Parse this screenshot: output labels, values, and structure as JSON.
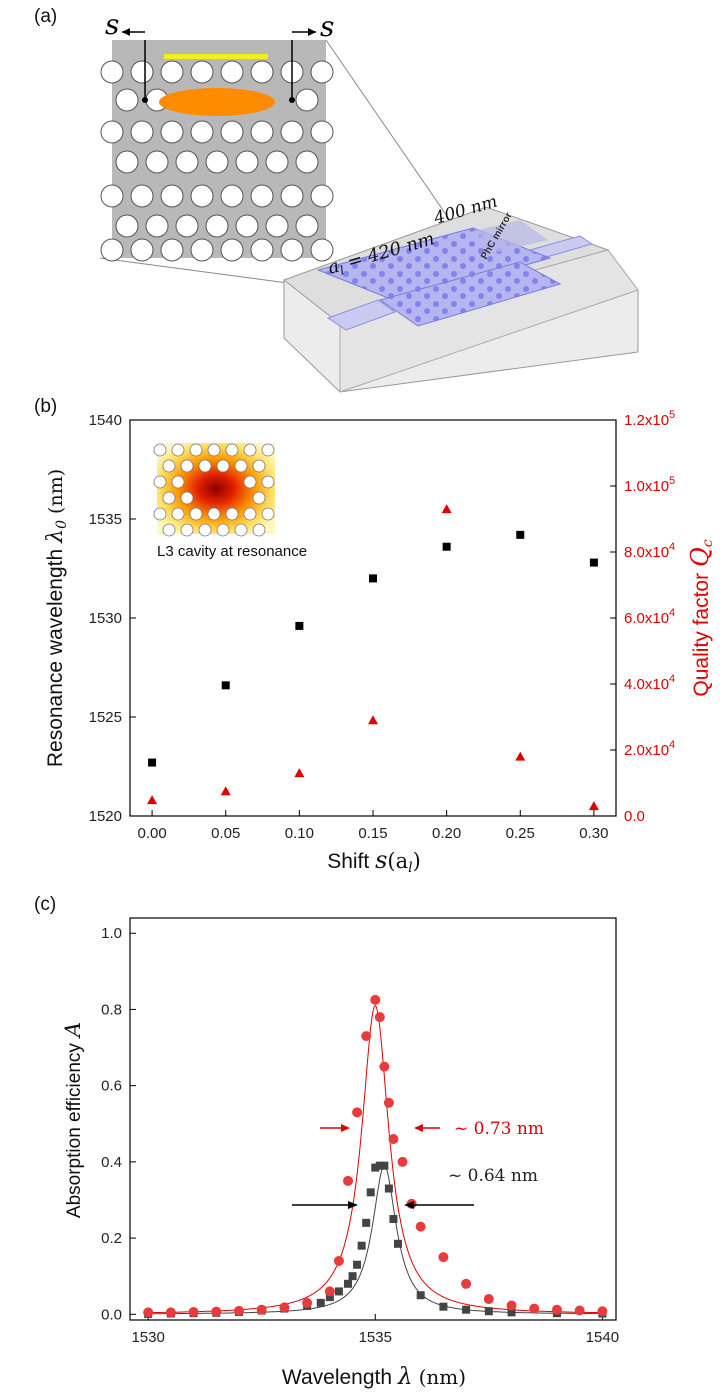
{
  "panel_a": {
    "label": "(a)",
    "shift_label_left": "s",
    "shift_label_right": "s",
    "lattice_label": "a_l = 420 nm",
    "lattice_label_a": "a",
    "lattice_label_sub": "l",
    "lattice_label_rest": " = 420 nm",
    "thickness_label": "400 nm",
    "mirror_label": "PhC mirror"
  },
  "chart_data": [
    {
      "type": "scatter",
      "panel": "(b)",
      "xlabel": "Shift s(a_l)",
      "xlabel_text": "Shift ",
      "xlabel_math": "s",
      "xlabel_math_paren": "(a",
      "xlabel_math_sub": "l",
      "xlabel_math_close": ")",
      "ylabel_left": "Resonance wavelength λ0 (nm)",
      "ylabel_left_text": "Resonance wavelength",
      "ylabel_left_math": "λ",
      "ylabel_left_sub": "0",
      "ylabel_left_unit": "(nm)",
      "ylabel_right": "Quality factor Q_c",
      "ylabel_right_text": "Quality factor",
      "ylabel_right_math": "Q",
      "ylabel_right_sub": "c",
      "xlim": [
        -0.015,
        0.315
      ],
      "ylim_left": [
        1520,
        1540
      ],
      "ylim_right": [
        0,
        120000
      ],
      "xticks": [
        "0.00",
        "0.05",
        "0.10",
        "0.15",
        "0.20",
        "0.25",
        "0.30"
      ],
      "yticks_left": [
        "1520",
        "1525",
        "1530",
        "1535",
        "1540"
      ],
      "yticks_right": [
        {
          "m": "0.0",
          "e": ""
        },
        {
          "m": "2.0x10",
          "e": "4"
        },
        {
          "m": "4.0x10",
          "e": "4"
        },
        {
          "m": "6.0x10",
          "e": "4"
        },
        {
          "m": "8.0x10",
          "e": "4"
        },
        {
          "m": "1.0x10",
          "e": "5"
        },
        {
          "m": "1.2x10",
          "e": "5"
        }
      ],
      "inset_caption": "L3 cavity at resonance",
      "series": [
        {
          "name": "Resonance wavelength",
          "axis": "left",
          "marker": "square",
          "color": "#000000",
          "x": [
            0.0,
            0.05,
            0.1,
            0.15,
            0.2,
            0.25,
            0.3
          ],
          "values": [
            1522.7,
            1526.6,
            1529.6,
            1532.0,
            1533.6,
            1534.2,
            1532.8
          ]
        },
        {
          "name": "Quality factor",
          "axis": "right",
          "marker": "triangle",
          "color": "#e00000",
          "x": [
            0.0,
            0.05,
            0.1,
            0.15,
            0.2,
            0.25,
            0.3
          ],
          "values": [
            4800,
            7500,
            13000,
            29000,
            93000,
            18000,
            3000
          ]
        }
      ]
    },
    {
      "type": "scatter",
      "panel": "(c)",
      "xlabel": "Wavelength λ (nm)",
      "xlabel_text": "Wavelength",
      "xlabel_math": "λ",
      "xlabel_unit": "(nm)",
      "ylabel": "Absorption efficiency A",
      "ylabel_text": "Absorption efficiency",
      "ylabel_math": "A",
      "xlim": [
        1530,
        1540
      ],
      "ylim": [
        0,
        1.0
      ],
      "xticks": [
        "1530",
        "1535",
        "1540"
      ],
      "yticks": [
        "0.0",
        "0.2",
        "0.4",
        "0.6",
        "0.8",
        "1.0"
      ],
      "annotations": [
        {
          "text": "~ 0.73 nm",
          "color": "#e00000"
        },
        {
          "text": "~ 0.64 nm",
          "color": "#222222"
        }
      ],
      "series": [
        {
          "name": "black squares",
          "marker": "square",
          "color": "#444444",
          "x": [
            1530,
            1530.5,
            1531,
            1531.5,
            1532,
            1532.5,
            1533,
            1533.5,
            1533.8,
            1534,
            1534.2,
            1534.4,
            1534.5,
            1534.6,
            1534.7,
            1534.8,
            1534.9,
            1535,
            1535.1,
            1535.2,
            1535.3,
            1535.4,
            1535.5,
            1536,
            1536.5,
            1537,
            1537.5,
            1538,
            1539,
            1540
          ],
          "values": [
            0.001,
            0.002,
            0.003,
            0.004,
            0.006,
            0.01,
            0.015,
            0.022,
            0.03,
            0.045,
            0.06,
            0.08,
            0.1,
            0.13,
            0.18,
            0.24,
            0.32,
            0.385,
            0.39,
            0.39,
            0.33,
            0.25,
            0.185,
            0.05,
            0.02,
            0.012,
            0.008,
            0.005,
            0.003,
            0.002
          ]
        },
        {
          "name": "red circles",
          "marker": "circle",
          "color": "#e83c3c",
          "x": [
            1530,
            1530.5,
            1531,
            1531.5,
            1532,
            1532.5,
            1533,
            1533.5,
            1534,
            1534.2,
            1534.4,
            1534.6,
            1534.8,
            1535,
            1535.1,
            1535.2,
            1535.3,
            1535.4,
            1535.6,
            1535.8,
            1536,
            1536.5,
            1537,
            1537.5,
            1538,
            1538.5,
            1539,
            1539.5,
            1540
          ],
          "values": [
            0.005,
            0.005,
            0.006,
            0.007,
            0.009,
            0.012,
            0.018,
            0.03,
            0.06,
            0.14,
            0.35,
            0.53,
            0.73,
            0.825,
            0.78,
            0.65,
            0.555,
            0.46,
            0.4,
            0.29,
            0.23,
            0.15,
            0.08,
            0.04,
            0.023,
            0.015,
            0.012,
            0.01,
            0.008
          ]
        }
      ],
      "fits": [
        {
          "name": "black Lorentzian fit",
          "color": "#444444",
          "center": 1535.2,
          "peak": 0.39,
          "fwhm": 0.64
        },
        {
          "name": "red Lorentzian fit",
          "color": "#e00000",
          "center": 1535.0,
          "peak": 0.81,
          "fwhm": 0.73
        }
      ]
    }
  ]
}
